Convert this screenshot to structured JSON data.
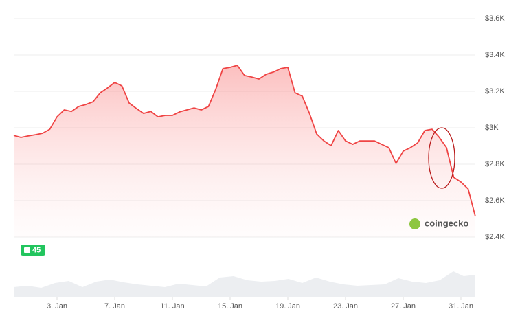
{
  "chart_data": {
    "type": "area",
    "color": "#ef4444",
    "x": [
      0,
      0.5,
      1,
      1.5,
      2,
      2.5,
      3,
      3.5,
      4,
      4.5,
      5,
      5.5,
      6,
      6.5,
      7,
      7.5,
      8,
      8.5,
      9,
      9.5,
      10,
      10.5,
      11,
      11.5,
      12,
      12.5,
      13,
      13.5,
      14,
      14.5,
      15,
      15.5,
      16,
      16.5,
      17,
      17.5,
      18,
      18.5,
      19,
      19.5,
      20,
      20.5,
      21,
      21.5,
      22,
      22.5,
      23,
      23.5,
      24,
      24.5,
      25,
      25.5,
      26,
      26.5,
      27,
      27.5,
      28,
      28.5,
      29,
      29.5,
      30,
      30.5,
      31,
      31.5,
      32
    ],
    "values": [
      2958,
      2947,
      2955,
      2962,
      2970,
      2992,
      3060,
      3098,
      3090,
      3117,
      3128,
      3143,
      3192,
      3219,
      3249,
      3230,
      3136,
      3106,
      3079,
      3090,
      3060,
      3068,
      3068,
      3087,
      3098,
      3109,
      3098,
      3117,
      3211,
      3325,
      3332,
      3343,
      3287,
      3279,
      3268,
      3294,
      3306,
      3325,
      3332,
      3192,
      3174,
      3079,
      2966,
      2928,
      2902,
      2985,
      2928,
      2909,
      2928,
      2928,
      2928,
      2909,
      2891,
      2804,
      2872,
      2891,
      2917,
      2985,
      2992,
      2947,
      2891,
      2728,
      2702,
      2664,
      2513
    ],
    "xlim": [
      0,
      32
    ],
    "xticks": [
      {
        "value": 3,
        "label": "3. Jan"
      },
      {
        "value": 7,
        "label": "7. Jan"
      },
      {
        "value": 11,
        "label": "11. Jan"
      },
      {
        "value": 15,
        "label": "15. Jan"
      },
      {
        "value": 19,
        "label": "19. Jan"
      },
      {
        "value": 23,
        "label": "23. Jan"
      },
      {
        "value": 27,
        "label": "27. Jan"
      },
      {
        "value": 31,
        "label": "31. Jan"
      }
    ],
    "ylim": [
      2400,
      3600
    ],
    "yticks": [
      {
        "value": 2400,
        "label": "$2.4K"
      },
      {
        "value": 2600,
        "label": "$2.6K"
      },
      {
        "value": 2800,
        "label": "$2.8K"
      },
      {
        "value": 3000,
        "label": "$3K"
      },
      {
        "value": 3200,
        "label": "$3.2K"
      },
      {
        "value": 3400,
        "label": "$3.4K"
      },
      {
        "value": 3600,
        "label": "$3.6K"
      }
    ],
    "grid": true,
    "badge": "45",
    "watermark": "coingecko"
  }
}
